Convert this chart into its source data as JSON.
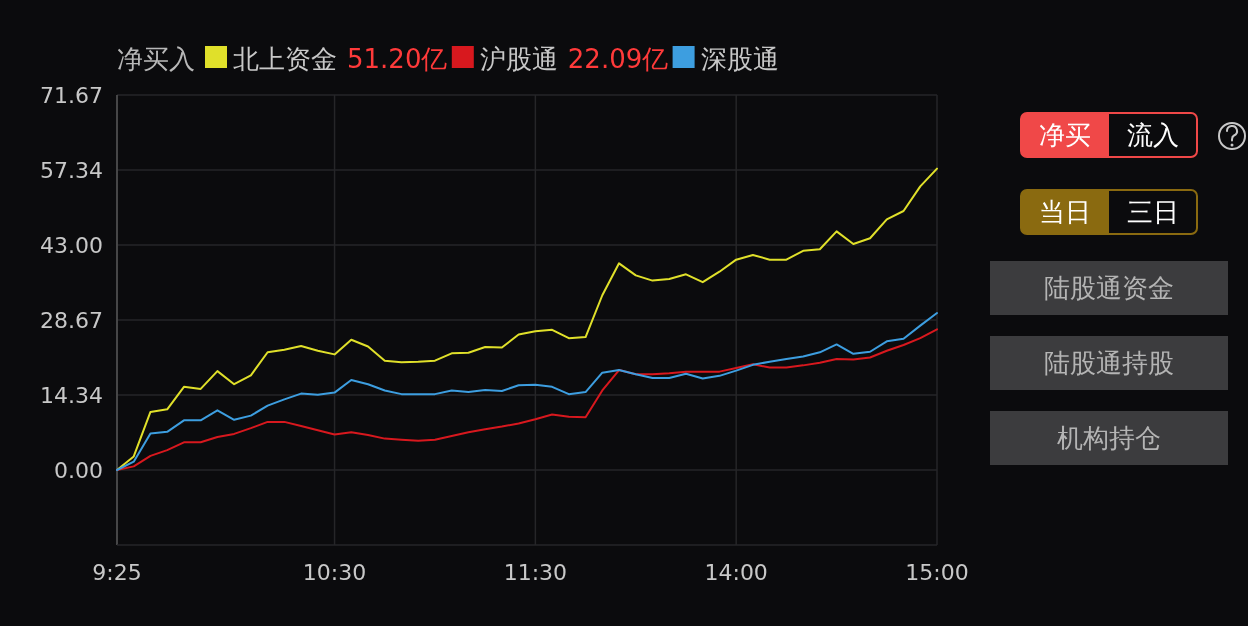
{
  "chart_data": {
    "type": "line",
    "legend_title": "净买入",
    "legend": "top",
    "grid": true,
    "categories": [
      "9:25",
      null,
      null,
      null,
      null,
      null,
      null,
      null,
      null,
      null,
      null,
      null,
      null,
      "10:30",
      null,
      null,
      null,
      null,
      null,
      null,
      null,
      null,
      null,
      null,
      null,
      "11:30",
      null,
      null,
      null,
      null,
      null,
      null,
      null,
      null,
      null,
      null,
      null,
      "14:00",
      null,
      null,
      null,
      null,
      null,
      null,
      null,
      null,
      null,
      null,
      null,
      "15:00"
    ],
    "ylim": [
      -14.33,
      71.67
    ],
    "yticks": [
      {
        "value": 0,
        "label": "0.00"
      },
      {
        "value": 14.34,
        "label": "14.34"
      },
      {
        "value": 28.67,
        "label": "28.67"
      },
      {
        "value": 43,
        "label": "43.00"
      },
      {
        "value": 57.34,
        "label": "57.34"
      },
      {
        "value": 71.67,
        "label": "71.67"
      }
    ],
    "series": [
      {
        "name": "北上资金",
        "color": "#e0e02a",
        "values": [
          0,
          2.6,
          11.1,
          11.6,
          15.9,
          15.5,
          18.9,
          16.4,
          18.1,
          22.5,
          23.0,
          23.7,
          22.8,
          22.1,
          24.9,
          23.6,
          20.9,
          20.6,
          20.7,
          20.9,
          22.3,
          22.4,
          23.5,
          23.4,
          25.9,
          26.5,
          26.8,
          25.2,
          25.4,
          33.4,
          39.5,
          37.2,
          36.2,
          36.5,
          37.4,
          35.9,
          37.9,
          40.2,
          41.1,
          40.2,
          40.2,
          41.9,
          42.2,
          45.6,
          43.2,
          44.3,
          47.9,
          49.5,
          54.2,
          57.6
        ]
      },
      {
        "name": "沪股通",
        "color": "#d8181e",
        "values": [
          0,
          0.7,
          2.7,
          3.8,
          5.3,
          5.3,
          6.3,
          6.9,
          8.0,
          9.2,
          9.2,
          8.4,
          7.6,
          6.8,
          7.2,
          6.7,
          6.0,
          5.8,
          5.6,
          5.8,
          6.5,
          7.2,
          7.8,
          8.3,
          8.9,
          9.7,
          10.6,
          10.2,
          10.1,
          15.2,
          19.1,
          18.3,
          18.3,
          18.5,
          18.8,
          18.8,
          18.8,
          19.5,
          20.2,
          19.6,
          19.6,
          20.0,
          20.5,
          21.2,
          21.1,
          21.5,
          22.8,
          23.9,
          25.2,
          26.9
        ]
      },
      {
        "name": "深股通",
        "color": "#3d9ee0",
        "values": [
          0,
          1.6,
          7.0,
          7.3,
          9.5,
          9.5,
          11.4,
          9.6,
          10.4,
          12.3,
          13.5,
          14.6,
          14.4,
          14.8,
          17.2,
          16.4,
          15.2,
          14.5,
          14.5,
          14.5,
          15.2,
          14.9,
          15.3,
          15.1,
          16.2,
          16.3,
          15.9,
          14.5,
          14.9,
          18.6,
          19.1,
          18.3,
          17.6,
          17.6,
          18.4,
          17.5,
          18.0,
          19.0,
          20.1,
          20.7,
          21.2,
          21.7,
          22.5,
          24.0,
          22.2,
          22.6,
          24.6,
          25.1,
          27.6,
          30.0
        ]
      }
    ],
    "annotations": [
      "51.20亿",
      "22.09亿",
      "净买",
      "流入",
      "当日",
      "三日",
      "陆股通资金",
      "陆股通持股",
      "机构持仓"
    ]
  }
}
